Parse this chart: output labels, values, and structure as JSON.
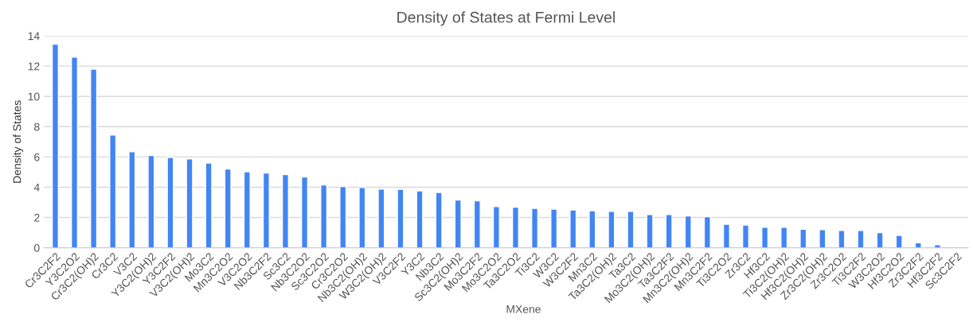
{
  "chart_data": {
    "type": "bar",
    "title": "Density of States at Fermi Level",
    "xlabel": "MXene",
    "ylabel": "Density of States",
    "categories": [
      "Cr3C2F2",
      "Y3C2O2",
      "Cr3C2(OH)2",
      "Cr3C2",
      "V3C2",
      "Y3C2(OH)2",
      "Y3C2F2",
      "V3C2(OH)2",
      "Mo3C2",
      "Mn3C2O2",
      "V3C2O2",
      "Nb3C2F2",
      "Sc3C2",
      "Nb3C2O2",
      "Sc3C2O2",
      "Cr3C2O2",
      "Nb3C2(OH)2",
      "W3C2(OH)2",
      "V3C2F2",
      "Y3C2",
      "Nb3C2",
      "Sc3C2(OH)2",
      "Mo3C2F2",
      "Mo3C2O2",
      "Ta3C2O2",
      "Ti3C2",
      "W3C2",
      "W3C2F2",
      "Mn3C2",
      "Ta3C2(OH)2",
      "Ta3C2",
      "Mo3C2(OH)2",
      "Ta3C2F2",
      "Mn3C2(OH)2",
      "Mn3C2F2",
      "Ti3C2O2",
      "Zr3C2",
      "Hf3C2",
      "Ti3C2(OH)2",
      "Hf3C2(OH)2",
      "Zr3C2(OH)2",
      "Zr3C2O2",
      "Ti3C2F2",
      "W3C2O2",
      "Hf3C2O2",
      "Zr3C2F2",
      "Hf3C2F2",
      "Sc3C2F2"
    ],
    "values": [
      13.45,
      12.6,
      11.8,
      7.45,
      6.35,
      6.1,
      5.97,
      5.87,
      5.6,
      5.2,
      5.02,
      4.94,
      4.83,
      4.68,
      4.15,
      4.05,
      3.98,
      3.88,
      3.87,
      3.76,
      3.65,
      3.15,
      3.1,
      2.72,
      2.68,
      2.6,
      2.55,
      2.5,
      2.45,
      2.4,
      2.4,
      2.2,
      2.2,
      2.1,
      2.05,
      1.55,
      1.5,
      1.35,
      1.35,
      1.22,
      1.2,
      1.15,
      1.15,
      1.0,
      0.82,
      0.33,
      0.2,
      null
    ],
    "color": "#4285f4",
    "ylim": [
      0,
      14
    ],
    "yticks": [
      0,
      2,
      4,
      6,
      8,
      10,
      12,
      14
    ],
    "grid": "y"
  }
}
